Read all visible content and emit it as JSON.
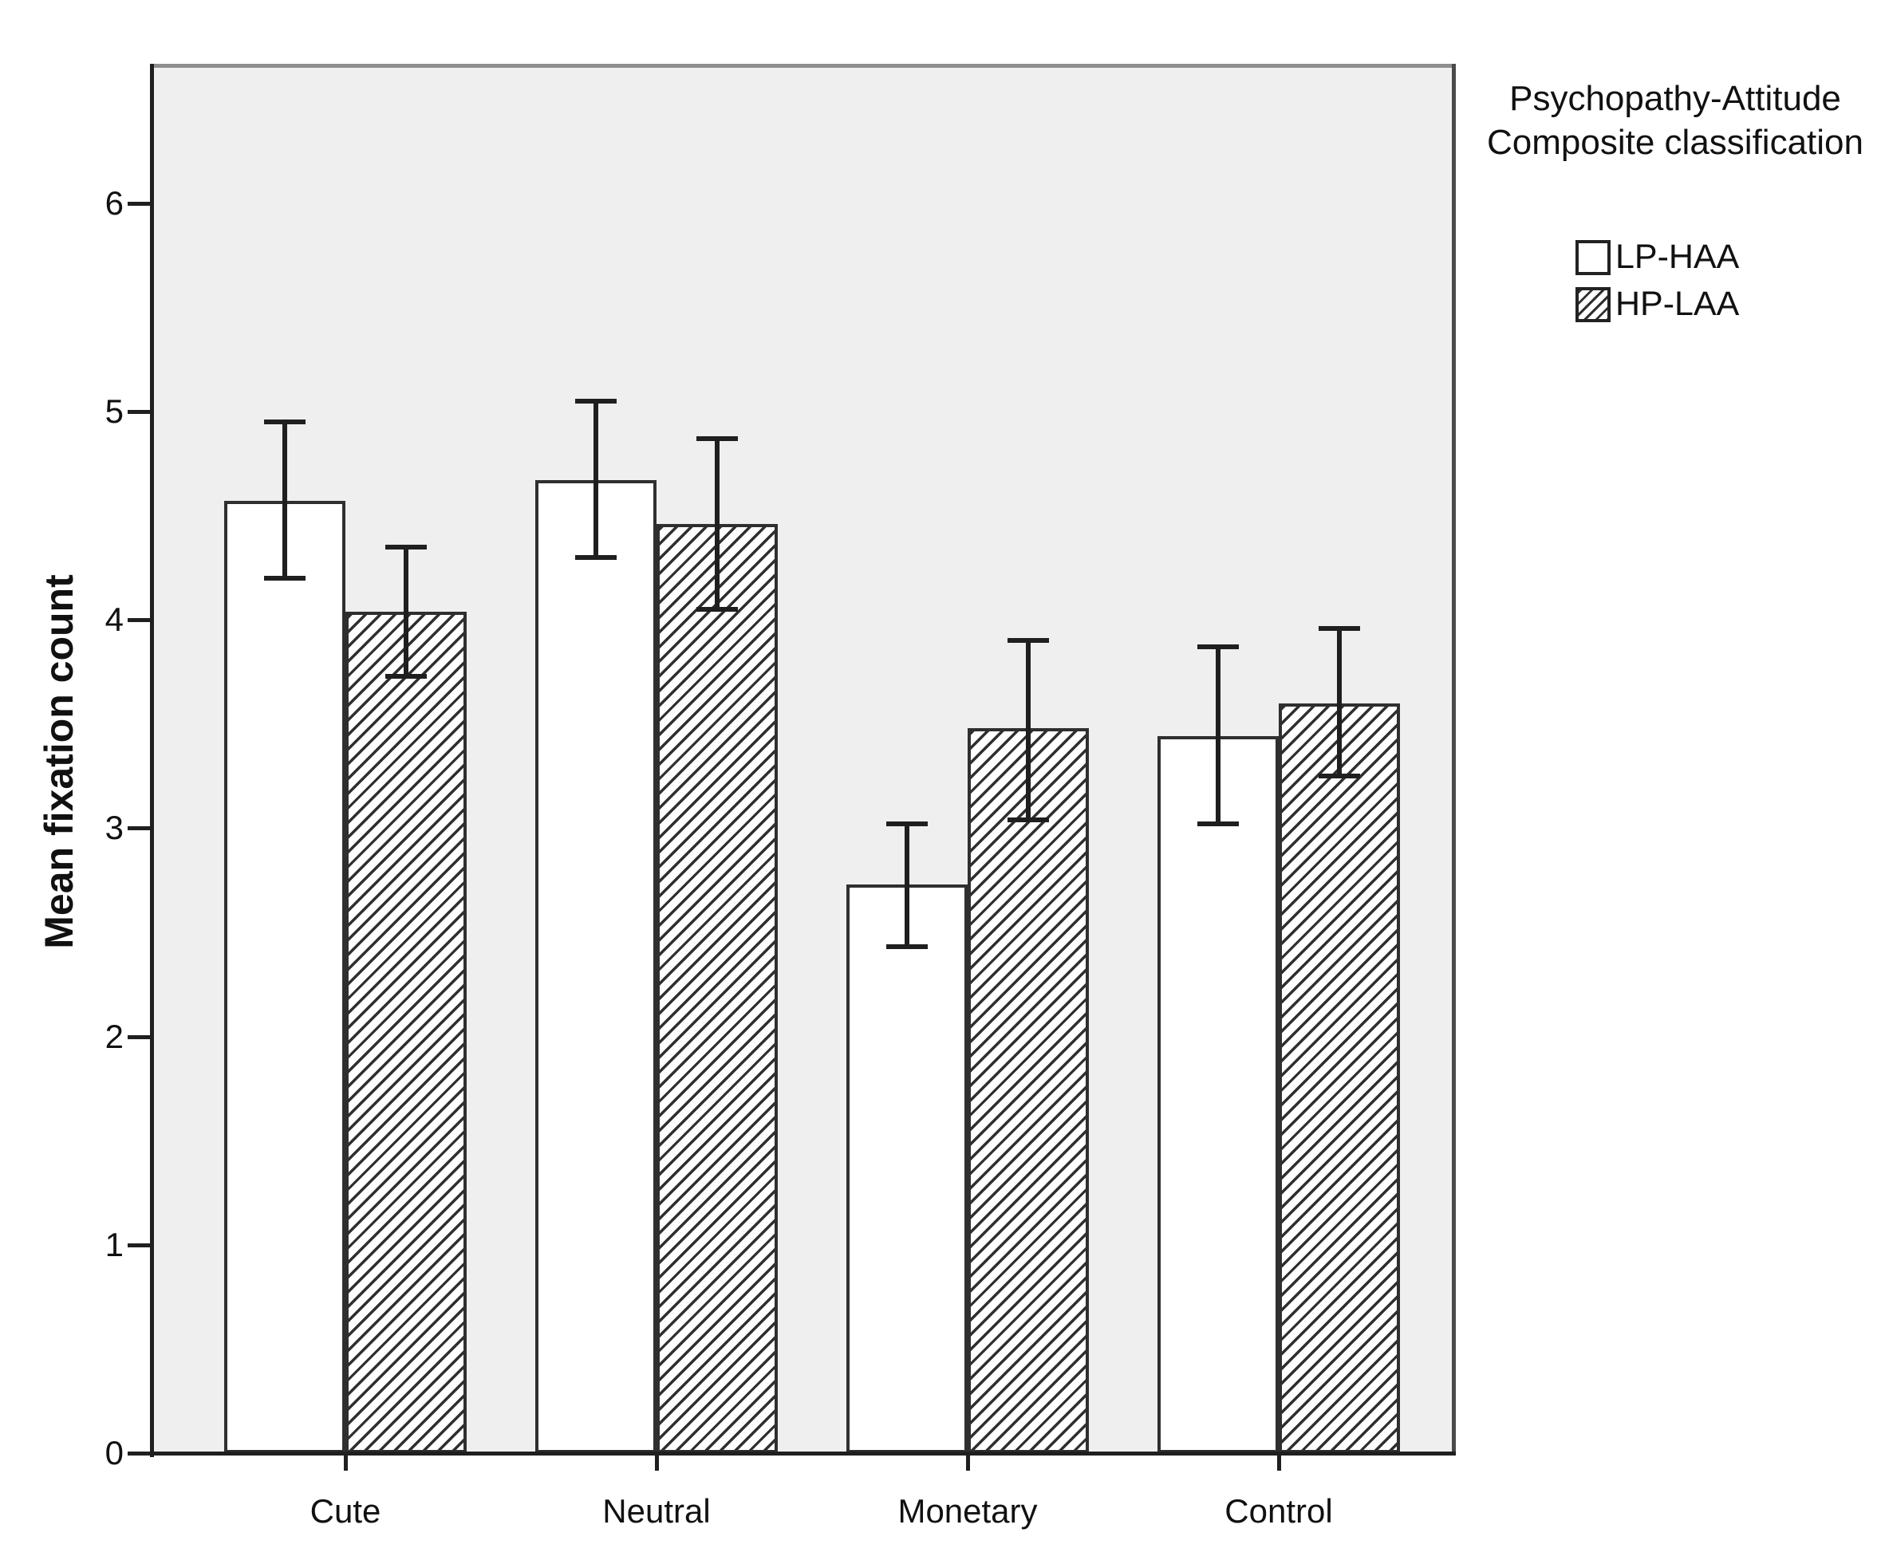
{
  "chart_data": {
    "type": "bar",
    "title": "",
    "xlabel": "",
    "ylabel": "Mean fixation count",
    "categories": [
      "Cute",
      "Neutral",
      "Monetary",
      "Control"
    ],
    "yticks": [
      0,
      1,
      2,
      3,
      4,
      5,
      6
    ],
    "ylim": [
      0,
      6.65
    ],
    "grid": false,
    "plot_background": "#EFEFEF",
    "bar_outline": "#2F2F2F",
    "error_bars": true,
    "legend_position": "top-right",
    "legend_title": "Psychopathy-Attitude Composite classification",
    "series": [
      {
        "name": "LP-HAA",
        "pattern": "solid-white",
        "values": [
          4.57,
          4.67,
          2.73,
          3.44
        ],
        "ci_low": [
          4.2,
          4.3,
          2.43,
          3.02
        ],
        "ci_high": [
          4.95,
          5.05,
          3.02,
          3.87
        ]
      },
      {
        "name": "HP-LAA",
        "pattern": "diagonal-hatch",
        "values": [
          4.04,
          4.46,
          3.48,
          3.6
        ],
        "ci_low": [
          3.73,
          4.05,
          3.04,
          3.25
        ],
        "ci_high": [
          4.35,
          4.87,
          3.9,
          3.96
        ]
      }
    ]
  }
}
